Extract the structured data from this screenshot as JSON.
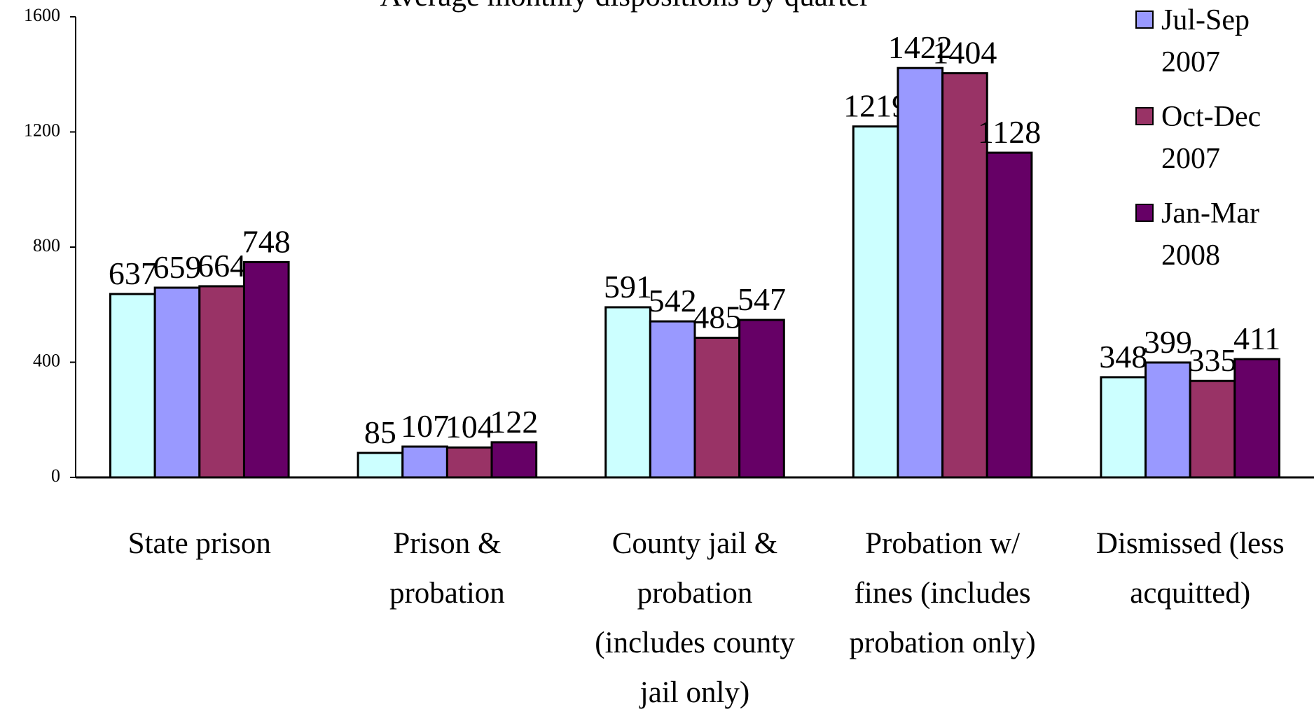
{
  "chart_data": {
    "type": "bar",
    "title": "Average monthly dispositions by quarter",
    "categories": [
      "State prison",
      "Prison & probation",
      "County jail & probation (includes county jail only)",
      "Probation w/ fines (includes probation only)",
      "Dismissed (less acquitted)"
    ],
    "series": [
      {
        "color": "#ccffff",
        "values": [
          637,
          85,
          591,
          1219,
          348
        ]
      },
      {
        "name": "Jul-Sep 2007",
        "color": "#9999ff",
        "values": [
          659,
          107,
          542,
          1422,
          399
        ]
      },
      {
        "name": "Oct-Dec 2007",
        "color": "#993366",
        "values": [
          664,
          104,
          485,
          1404,
          335
        ]
      },
      {
        "name": "Jan-Mar 2008",
        "color": "#660066",
        "values": [
          748,
          122,
          547,
          1128,
          411
        ]
      }
    ],
    "ylim": [
      0,
      1600
    ],
    "yticks": [
      0,
      400,
      800,
      1200,
      1600
    ],
    "grid": false,
    "legend": "right"
  }
}
